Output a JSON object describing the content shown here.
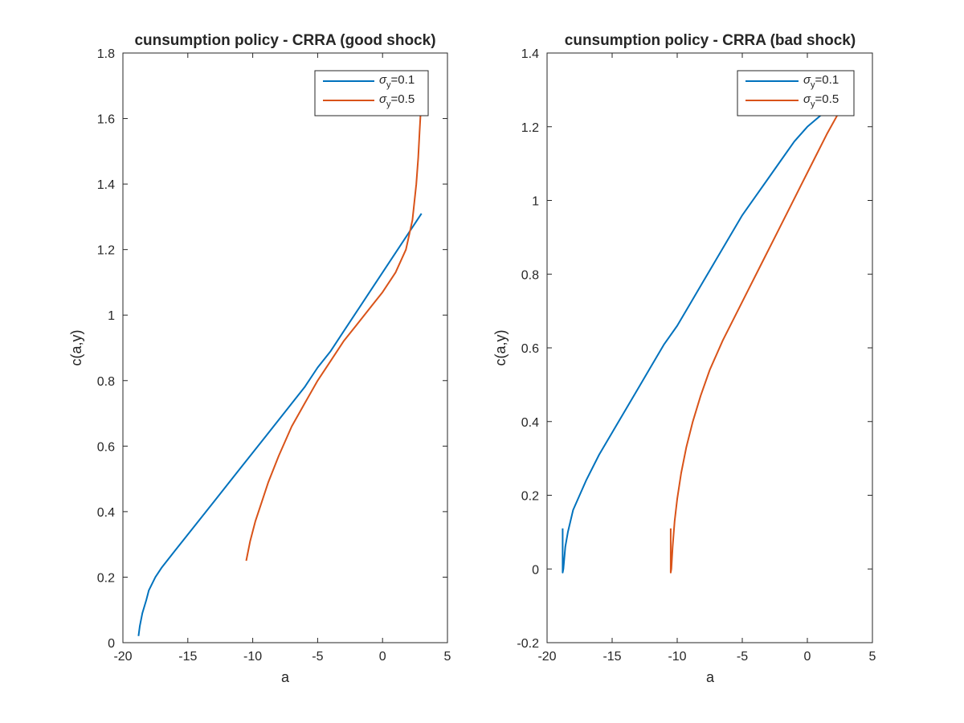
{
  "colors": {
    "series1": "#0072BD",
    "series2": "#D95319",
    "axis": "#262626"
  },
  "chart_data": [
    {
      "type": "line",
      "title": "cunsumption policy - CRRA (good shock)",
      "xlabel": "a",
      "ylabel": "c(a,y)",
      "xlim": [
        -20,
        5
      ],
      "ylim": [
        0,
        1.8
      ],
      "xticks": [
        -20,
        -15,
        -10,
        -5,
        0,
        5
      ],
      "yticks": [
        0,
        0.2,
        0.4,
        0.6,
        0.8,
        1,
        1.2,
        1.4,
        1.6,
        1.8
      ],
      "xtick_labels": [
        "-20",
        "-15",
        "-10",
        "-5",
        "0",
        "5"
      ],
      "ytick_labels": [
        "0",
        "0.2",
        "0.4",
        "0.6",
        "0.8",
        "1",
        "1.2",
        "1.4",
        "1.6",
        "1.8"
      ],
      "legend_position": "top-right",
      "grid": false,
      "series": [
        {
          "legend_symbol": "σ",
          "legend_sub": "y",
          "legend_value": "=0.1",
          "x": [
            -18.8,
            -18.7,
            -18.5,
            -18.2,
            -18.0,
            -17.5,
            -17.0,
            -16.0,
            -15.0,
            -14.0,
            -13.0,
            -12.0,
            -11.0,
            -10.0,
            -9.0,
            -8.0,
            -7.0,
            -6.0,
            -5.0,
            -4.0,
            -3.0,
            -2.0,
            -1.0,
            0.0,
            1.0,
            2.0,
            3.0
          ],
          "y": [
            0.02,
            0.05,
            0.09,
            0.13,
            0.16,
            0.2,
            0.23,
            0.28,
            0.33,
            0.38,
            0.43,
            0.48,
            0.53,
            0.58,
            0.63,
            0.68,
            0.73,
            0.78,
            0.84,
            0.89,
            0.95,
            1.01,
            1.07,
            1.13,
            1.19,
            1.25,
            1.31
          ]
        },
        {
          "legend_symbol": "σ",
          "legend_sub": "y",
          "legend_value": "=0.5",
          "x": [
            -10.5,
            -10.2,
            -9.8,
            -9.3,
            -8.8,
            -8.0,
            -7.0,
            -6.0,
            -5.0,
            -4.0,
            -3.0,
            -2.0,
            -1.0,
            0.0,
            1.0,
            1.8,
            2.3,
            2.6,
            2.75,
            2.85,
            2.95
          ],
          "y": [
            0.25,
            0.31,
            0.37,
            0.43,
            0.49,
            0.57,
            0.66,
            0.73,
            0.8,
            0.86,
            0.92,
            0.97,
            1.02,
            1.07,
            1.13,
            1.2,
            1.29,
            1.4,
            1.48,
            1.56,
            1.63
          ]
        }
      ]
    },
    {
      "type": "line",
      "title": "cunsumption policy - CRRA (bad shock)",
      "xlabel": "a",
      "ylabel": "c(a,y)",
      "xlim": [
        -20,
        5
      ],
      "ylim": [
        -0.2,
        1.4
      ],
      "xticks": [
        -20,
        -15,
        -10,
        -5,
        0,
        5
      ],
      "yticks": [
        -0.2,
        0,
        0.2,
        0.4,
        0.6,
        0.8,
        1,
        1.2,
        1.4
      ],
      "xtick_labels": [
        "-20",
        "-15",
        "-10",
        "-5",
        "0",
        "5"
      ],
      "ytick_labels": [
        "-0.2",
        "0",
        "0.2",
        "0.4",
        "0.6",
        "0.8",
        "1",
        "1.2",
        "1.4"
      ],
      "legend_position": "top-right",
      "grid": false,
      "series": [
        {
          "legend_symbol": "σ",
          "legend_sub": "y",
          "legend_value": "=0.1",
          "x": [
            -18.8,
            -18.8,
            -18.75,
            -18.6,
            -18.4,
            -18.0,
            -17.5,
            -17.0,
            -16.0,
            -15.0,
            -14.0,
            -13.0,
            -12.0,
            -11.0,
            -10.0,
            -9.0,
            -8.0,
            -7.0,
            -6.0,
            -5.0,
            -4.0,
            -3.0,
            -2.0,
            -1.0,
            0.0,
            1.0,
            1.8
          ],
          "y": [
            0.11,
            -0.01,
            0.0,
            0.06,
            0.1,
            0.16,
            0.2,
            0.24,
            0.31,
            0.37,
            0.43,
            0.49,
            0.55,
            0.61,
            0.66,
            0.72,
            0.78,
            0.84,
            0.9,
            0.96,
            1.01,
            1.06,
            1.11,
            1.16,
            1.2,
            1.23,
            1.25
          ]
        },
        {
          "legend_symbol": "σ",
          "legend_sub": "y",
          "legend_value": "=0.5",
          "x": [
            -10.5,
            -10.5,
            -10.45,
            -10.35,
            -10.2,
            -10.0,
            -9.7,
            -9.3,
            -8.8,
            -8.2,
            -7.5,
            -6.5,
            -5.5,
            -4.5,
            -3.5,
            -2.5,
            -1.5,
            -0.5,
            0.5,
            1.5,
            2.6
          ],
          "y": [
            0.11,
            -0.01,
            0.0,
            0.06,
            0.13,
            0.19,
            0.26,
            0.33,
            0.4,
            0.47,
            0.54,
            0.62,
            0.69,
            0.76,
            0.83,
            0.9,
            0.97,
            1.04,
            1.11,
            1.18,
            1.25
          ]
        }
      ]
    }
  ]
}
